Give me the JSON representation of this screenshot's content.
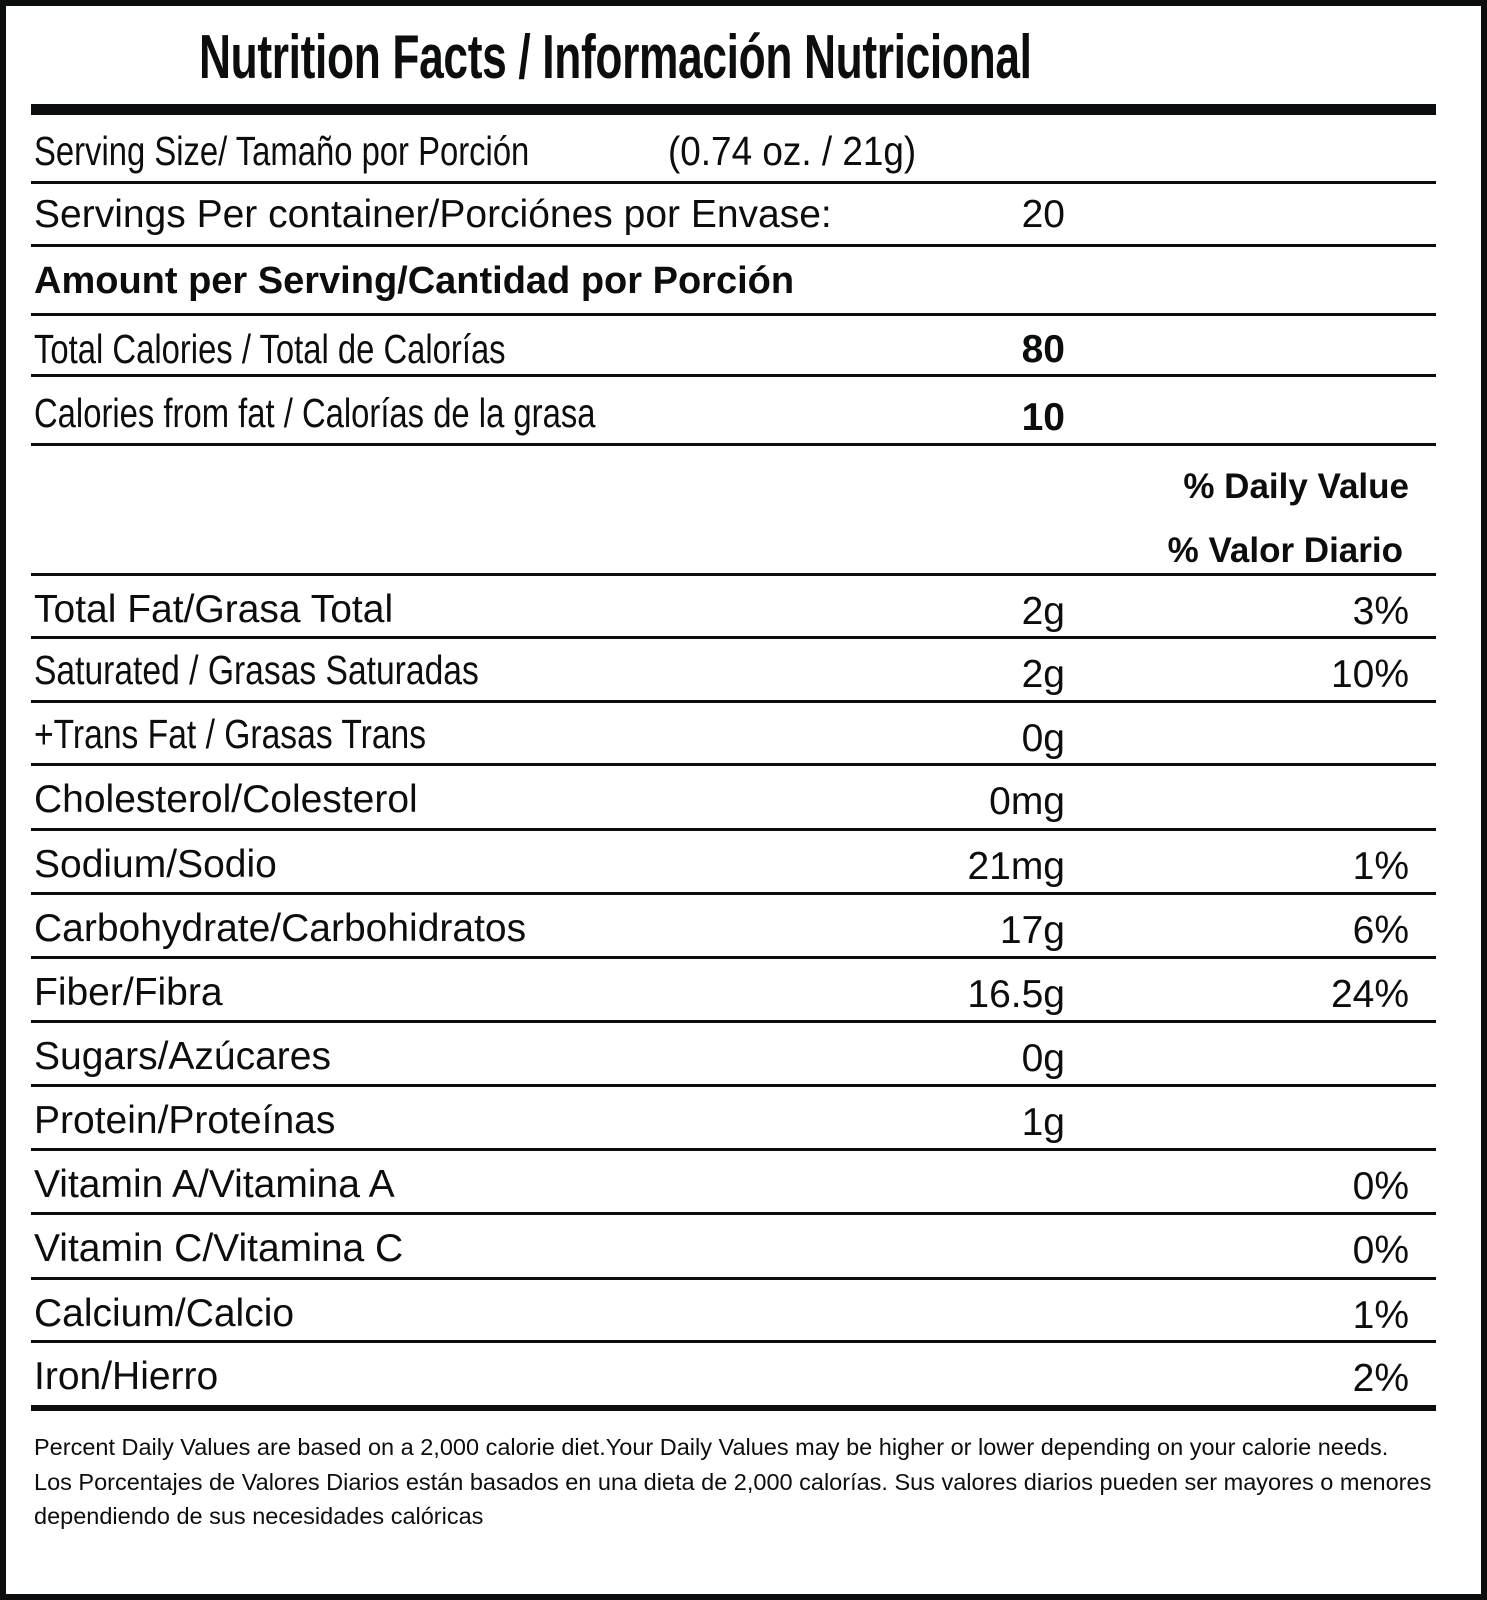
{
  "title": "Nutrition Facts / Información Nutricional",
  "serving_size": {
    "label": "Serving Size/ Tamaño por Porción",
    "value": "(0.74 oz. / 21g)"
  },
  "servings_per_container": {
    "label": "Servings Per container/Porciónes por Envase:",
    "value": "20"
  },
  "amount_per_serving": "Amount per Serving/Cantidad por Porción",
  "total_calories": {
    "label": "Total Calories / Total de Calorías",
    "value": "80"
  },
  "calories_from_fat": {
    "label": "Calories from fat / Calorías de la grasa",
    "value": "10"
  },
  "daily_value_header": {
    "en": "% Daily Value",
    "es": "% Valor Diario"
  },
  "nutrients": [
    {
      "label": "Total Fat/Grasa Total",
      "amount": "2g",
      "dv": "3%"
    },
    {
      "label": "Saturated / Grasas Saturadas",
      "amount": "2g",
      "dv": "10%"
    },
    {
      "label": "+Trans Fat / Grasas Trans",
      "amount": "0g",
      "dv": ""
    },
    {
      "label": "Cholesterol/Colesterol",
      "amount": "0mg",
      "dv": ""
    },
    {
      "label": "Sodium/Sodio",
      "amount": "21mg",
      "dv": "1%"
    },
    {
      "label": "Carbohydrate/Carbohidratos",
      "amount": "17g",
      "dv": "6%"
    },
    {
      "label": "Fiber/Fibra",
      "amount": "16.5g",
      "dv": "24%"
    },
    {
      "label": "Sugars/Azúcares",
      "amount": "0g",
      "dv": ""
    },
    {
      "label": "Protein/Proteínas",
      "amount": "1g",
      "dv": ""
    },
    {
      "label": "Vitamin A/Vitamina A",
      "amount": "",
      "dv": "0%"
    },
    {
      "label": "Vitamin C/Vitamina C",
      "amount": "",
      "dv": "0%"
    },
    {
      "label": "Calcium/Calcio",
      "amount": "",
      "dv": "1%"
    },
    {
      "label": "Iron/Hierro",
      "amount": "",
      "dv": "2%"
    }
  ],
  "footnote": {
    "en": "Percent Daily Values are based on a 2,000 calorie diet.Your Daily Values may be higher or lower depending on your calorie needs.",
    "es": "Los Porcentajes de Valores Diarios están basados en una dieta de 2,000 calorías. Sus valores diarios pueden ser mayores o menores dependiendo de sus necesidades calóricas"
  }
}
